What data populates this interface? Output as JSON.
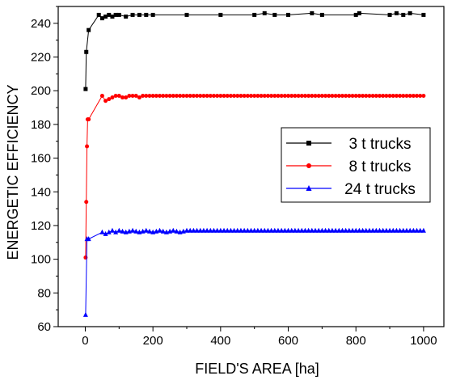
{
  "chart_data": {
    "type": "line",
    "title": "",
    "xlabel": "FIELD'S AREA [ha]",
    "ylabel": "ENERGETIC EFFICIENCY",
    "xlim": [
      -80,
      1060
    ],
    "ylim": [
      60,
      250
    ],
    "xticks": [
      0,
      200,
      400,
      600,
      800,
      1000
    ],
    "yticks": [
      60,
      80,
      100,
      120,
      140,
      160,
      180,
      200,
      220,
      240
    ],
    "xtick_labels": [
      "0",
      "200",
      "400",
      "600",
      "800",
      "1000"
    ],
    "ytick_labels": [
      "60",
      "80",
      "100",
      "120",
      "140",
      "160",
      "180",
      "200",
      "220",
      "240"
    ],
    "grid": false,
    "legend_position": "right",
    "series": [
      {
        "name": "3 t trucks",
        "color": "#000000",
        "marker": "square",
        "x": [
          1,
          3,
          10,
          40,
          50,
          60,
          70,
          80,
          90,
          100,
          120,
          140,
          160,
          180,
          200,
          300,
          400,
          500,
          530,
          560,
          600,
          670,
          700,
          800,
          810,
          900,
          920,
          940,
          960,
          1000
        ],
        "y": [
          201,
          223,
          236,
          245,
          243,
          244,
          245,
          244,
          245,
          245,
          244,
          245,
          245,
          245,
          245,
          245,
          245,
          245,
          246,
          245,
          245,
          246,
          245,
          245,
          246,
          245,
          246,
          245,
          246,
          245
        ]
      },
      {
        "name": "8 t trucks",
        "color": "#ff0000",
        "marker": "circle",
        "x": [
          1,
          3,
          5,
          7,
          10,
          50,
          60,
          70,
          80,
          90,
          100,
          110,
          120,
          130,
          140,
          150,
          160,
          170,
          180,
          200,
          300,
          400,
          500,
          600,
          700,
          800,
          900,
          1000
        ],
        "y": [
          101,
          134,
          167,
          183,
          183,
          197,
          194,
          195,
          196,
          197,
          197,
          196,
          196,
          197,
          197,
          197,
          196,
          197,
          197,
          197,
          197,
          197,
          197,
          197,
          197,
          197,
          197,
          197
        ],
        "density": 5
      },
      {
        "name": "24 t trucks",
        "color": "#0000ff",
        "marker": "triangle",
        "x": [
          1,
          5,
          10,
          50,
          60,
          70,
          80,
          90,
          100,
          120,
          140,
          160,
          180,
          200,
          220,
          240,
          260,
          280,
          300,
          400,
          500,
          600,
          700,
          800,
          900,
          1000
        ],
        "y": [
          67,
          112,
          112,
          116,
          115,
          116,
          117,
          116,
          117,
          116,
          117,
          116,
          117,
          116,
          117,
          116,
          117,
          116,
          117,
          117,
          117,
          117,
          117,
          117,
          117,
          117
        ],
        "density": 5
      }
    ]
  }
}
